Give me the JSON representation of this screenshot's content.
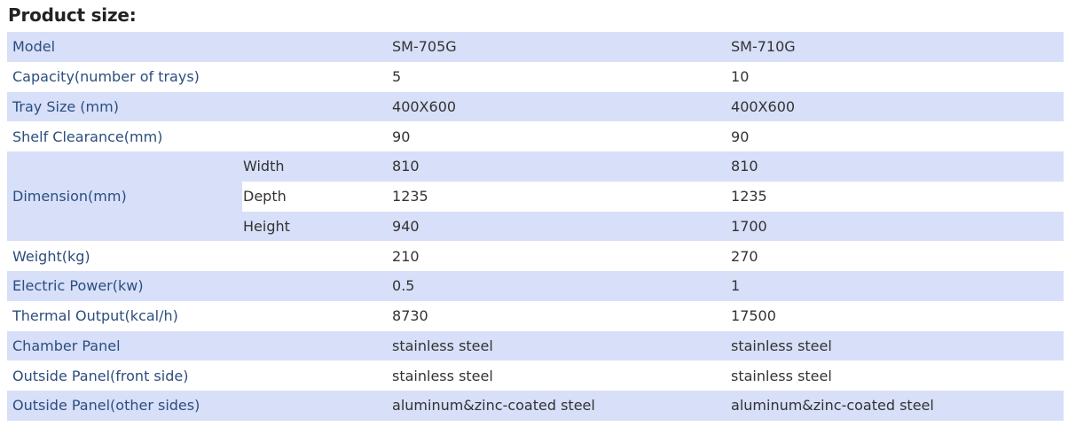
{
  "page": {
    "title": "Product size:"
  },
  "table": {
    "rows": [
      {
        "label": "Model",
        "sub": "",
        "v1": "SM-705G",
        "v2": "SM-710G"
      },
      {
        "label": "Capacity(number of trays)",
        "sub": "",
        "v1": "5",
        "v2": "10"
      },
      {
        "label": "Tray Size (mm)",
        "sub": "",
        "v1": "400X600",
        "v2": "400X600"
      },
      {
        "label": "Shelf Clearance(mm)",
        "sub": "",
        "v1": "90",
        "v2": "90"
      },
      {
        "label": "Dimension(mm)",
        "sub": "Width",
        "v1": "810",
        "v2": "810"
      },
      {
        "label": "",
        "sub": "Depth",
        "v1": "1235",
        "v2": "1235"
      },
      {
        "label": "",
        "sub": "Height",
        "v1": "940",
        "v2": "1700"
      },
      {
        "label": "Weight(kg)",
        "sub": "",
        "v1": "210",
        "v2": "270"
      },
      {
        "label": "Electric Power(kw)",
        "sub": "",
        "v1": "0.5",
        "v2": "1"
      },
      {
        "label": "Thermal Output(kcal/h)",
        "sub": "",
        "v1": "8730",
        "v2": "17500"
      },
      {
        "label": "Chamber Panel",
        "sub": "",
        "v1": "stainless steel",
        "v2": "stainless steel"
      },
      {
        "label": "Outside Panel(front side)",
        "sub": "",
        "v1": "stainless steel",
        "v2": "stainless steel"
      },
      {
        "label": "Outside Panel(other sides)",
        "sub": "",
        "v1": "aluminum&zinc-coated steel",
        "v2": "aluminum&zinc-coated steel"
      }
    ]
  },
  "colors": {
    "stripe": "#d7dff9",
    "label_text": "#2c4e7e",
    "value_text": "#333333"
  }
}
